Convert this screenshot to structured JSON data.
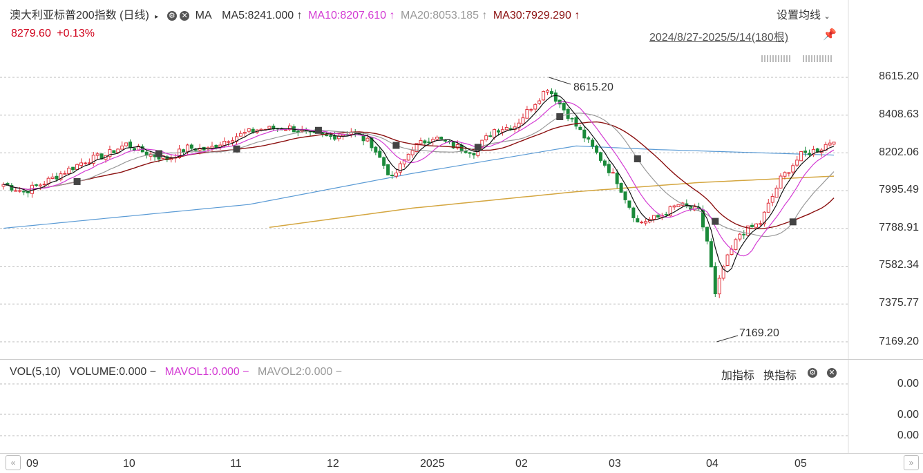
{
  "header": {
    "title": "澳大利亚标普200指数 (日线)",
    "indicator": "MA",
    "ma5": "MA5:8241.000",
    "ma10": "MA10:8207.610",
    "ma20": "MA20:8053.185",
    "ma30": "MA30:7929.290",
    "arrow": "↑",
    "settings_label": "设置均线",
    "price": "8279.60",
    "change": "+0.13%",
    "range": "2024/8/27-2025/5/14(180根)"
  },
  "volume_header": {
    "vol": "VOL(5,10)",
    "volume": "VOLUME:0.000",
    "mavol1": "MAVOL1:0.000",
    "mavol2": "MAVOL2:0.000",
    "dash": "−",
    "add_indicator": "加指标",
    "change_indicator": "换指标"
  },
  "volume_axis": [
    "0.00",
    "0.00",
    "0.00"
  ],
  "colors": {
    "up": "#e0313b",
    "down": "#1a8a3a",
    "ma5": "#111111",
    "ma10": "#d33bd3",
    "ma20": "#999999",
    "ma30": "#8b1010",
    "ma_long1": "#5b9bd5",
    "ma_long2": "#d4a640"
  },
  "chart_data": {
    "type": "candlestick",
    "y_ticks": [
      "8615.20",
      "8408.63",
      "8202.06",
      "7995.49",
      "7788.91",
      "7582.34",
      "7375.77",
      "7169.20"
    ],
    "ylim": [
      7169.2,
      8615.2
    ],
    "x_ticks": [
      "09",
      "10",
      "11",
      "12",
      "2025",
      "02",
      "03",
      "04",
      "05"
    ],
    "annotations": [
      {
        "text": "8615.20",
        "index": 133
      },
      {
        "text": "7169.20",
        "index": 174
      }
    ],
    "anchors": [
      [
        0,
        8030
      ],
      [
        5,
        7990
      ],
      [
        10,
        8040
      ],
      [
        15,
        8100
      ],
      [
        20,
        8160
      ],
      [
        25,
        8190
      ],
      [
        30,
        8250
      ],
      [
        35,
        8200
      ],
      [
        40,
        8170
      ],
      [
        45,
        8230
      ],
      [
        50,
        8220
      ],
      [
        55,
        8280
      ],
      [
        62,
        8330
      ],
      [
        70,
        8340
      ],
      [
        75,
        8300
      ],
      [
        80,
        8290
      ],
      [
        85,
        8320
      ],
      [
        90,
        8250
      ],
      [
        95,
        8060
      ],
      [
        100,
        8230
      ],
      [
        105,
        8290
      ],
      [
        110,
        8240
      ],
      [
        115,
        8210
      ],
      [
        120,
        8330
      ],
      [
        125,
        8350
      ],
      [
        130,
        8480
      ],
      [
        133,
        8560
      ],
      [
        136,
        8470
      ],
      [
        140,
        8350
      ],
      [
        145,
        8200
      ],
      [
        150,
        8050
      ],
      [
        155,
        7820
      ],
      [
        160,
        7850
      ],
      [
        165,
        7920
      ],
      [
        170,
        7880
      ],
      [
        172,
        7720
      ],
      [
        174,
        7420
      ],
      [
        176,
        7580
      ],
      [
        180,
        7760
      ],
      [
        185,
        7820
      ],
      [
        190,
        8060
      ],
      [
        195,
        8190
      ],
      [
        200,
        8230
      ],
      [
        203,
        8280
      ]
    ],
    "ma_long1_anchors": [
      [
        0,
        7790
      ],
      [
        60,
        7920
      ],
      [
        100,
        8090
      ],
      [
        140,
        8240
      ],
      [
        160,
        8220
      ],
      [
        203,
        8190
      ]
    ],
    "ma_long2_anchors": [
      [
        65,
        7795
      ],
      [
        100,
        7900
      ],
      [
        140,
        7990
      ],
      [
        170,
        8040
      ],
      [
        203,
        8075
      ]
    ],
    "markers": [
      18,
      38,
      57,
      77,
      96,
      116,
      136,
      155,
      174,
      193
    ]
  }
}
